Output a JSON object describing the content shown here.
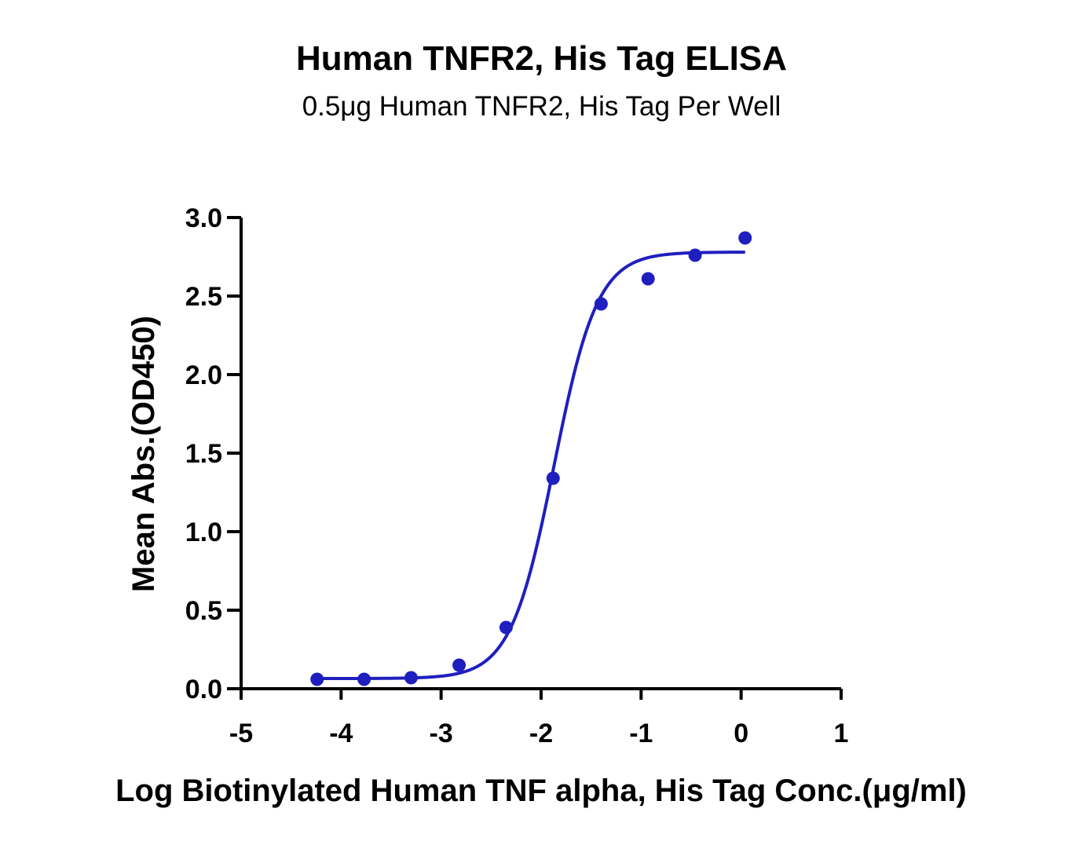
{
  "chart_data": {
    "type": "scatter",
    "title": "Human TNFR2, His Tag ELISA",
    "subtitle": "0.5μg Human TNFR2, His Tag Per Well",
    "xlabel": "Log Biotinylated Human TNF alpha, His Tag Conc.(μg/ml)",
    "ylabel": "Mean Abs.(OD450)",
    "xlim": [
      -5,
      1
    ],
    "ylim": [
      0,
      3.0
    ],
    "x_ticks": [
      "-5",
      "-4",
      "-3",
      "-2",
      "-1",
      "0",
      "1"
    ],
    "y_ticks": [
      "0.0",
      "0.5",
      "1.0",
      "1.5",
      "2.0",
      "2.5",
      "3.0"
    ],
    "grid": false,
    "series": [
      {
        "points": [
          {
            "x": -4.24,
            "y": 0.06
          },
          {
            "x": -3.77,
            "y": 0.06
          },
          {
            "x": -3.3,
            "y": 0.07
          },
          {
            "x": -2.82,
            "y": 0.15
          },
          {
            "x": -2.35,
            "y": 0.39
          },
          {
            "x": -1.88,
            "y": 1.34
          },
          {
            "x": -1.4,
            "y": 2.45
          },
          {
            "x": -0.93,
            "y": 2.61
          },
          {
            "x": -0.46,
            "y": 2.76
          },
          {
            "x": 0.04,
            "y": 2.87
          }
        ],
        "fit": {
          "model": "4PL",
          "bottom": 0.065,
          "top": 2.78,
          "logEC50": -1.87,
          "hill": 2.0,
          "x_range": [
            -4.24,
            0.04
          ]
        }
      }
    ],
    "colors": {
      "series": "#1f1fbf",
      "axis": "#000000"
    }
  }
}
